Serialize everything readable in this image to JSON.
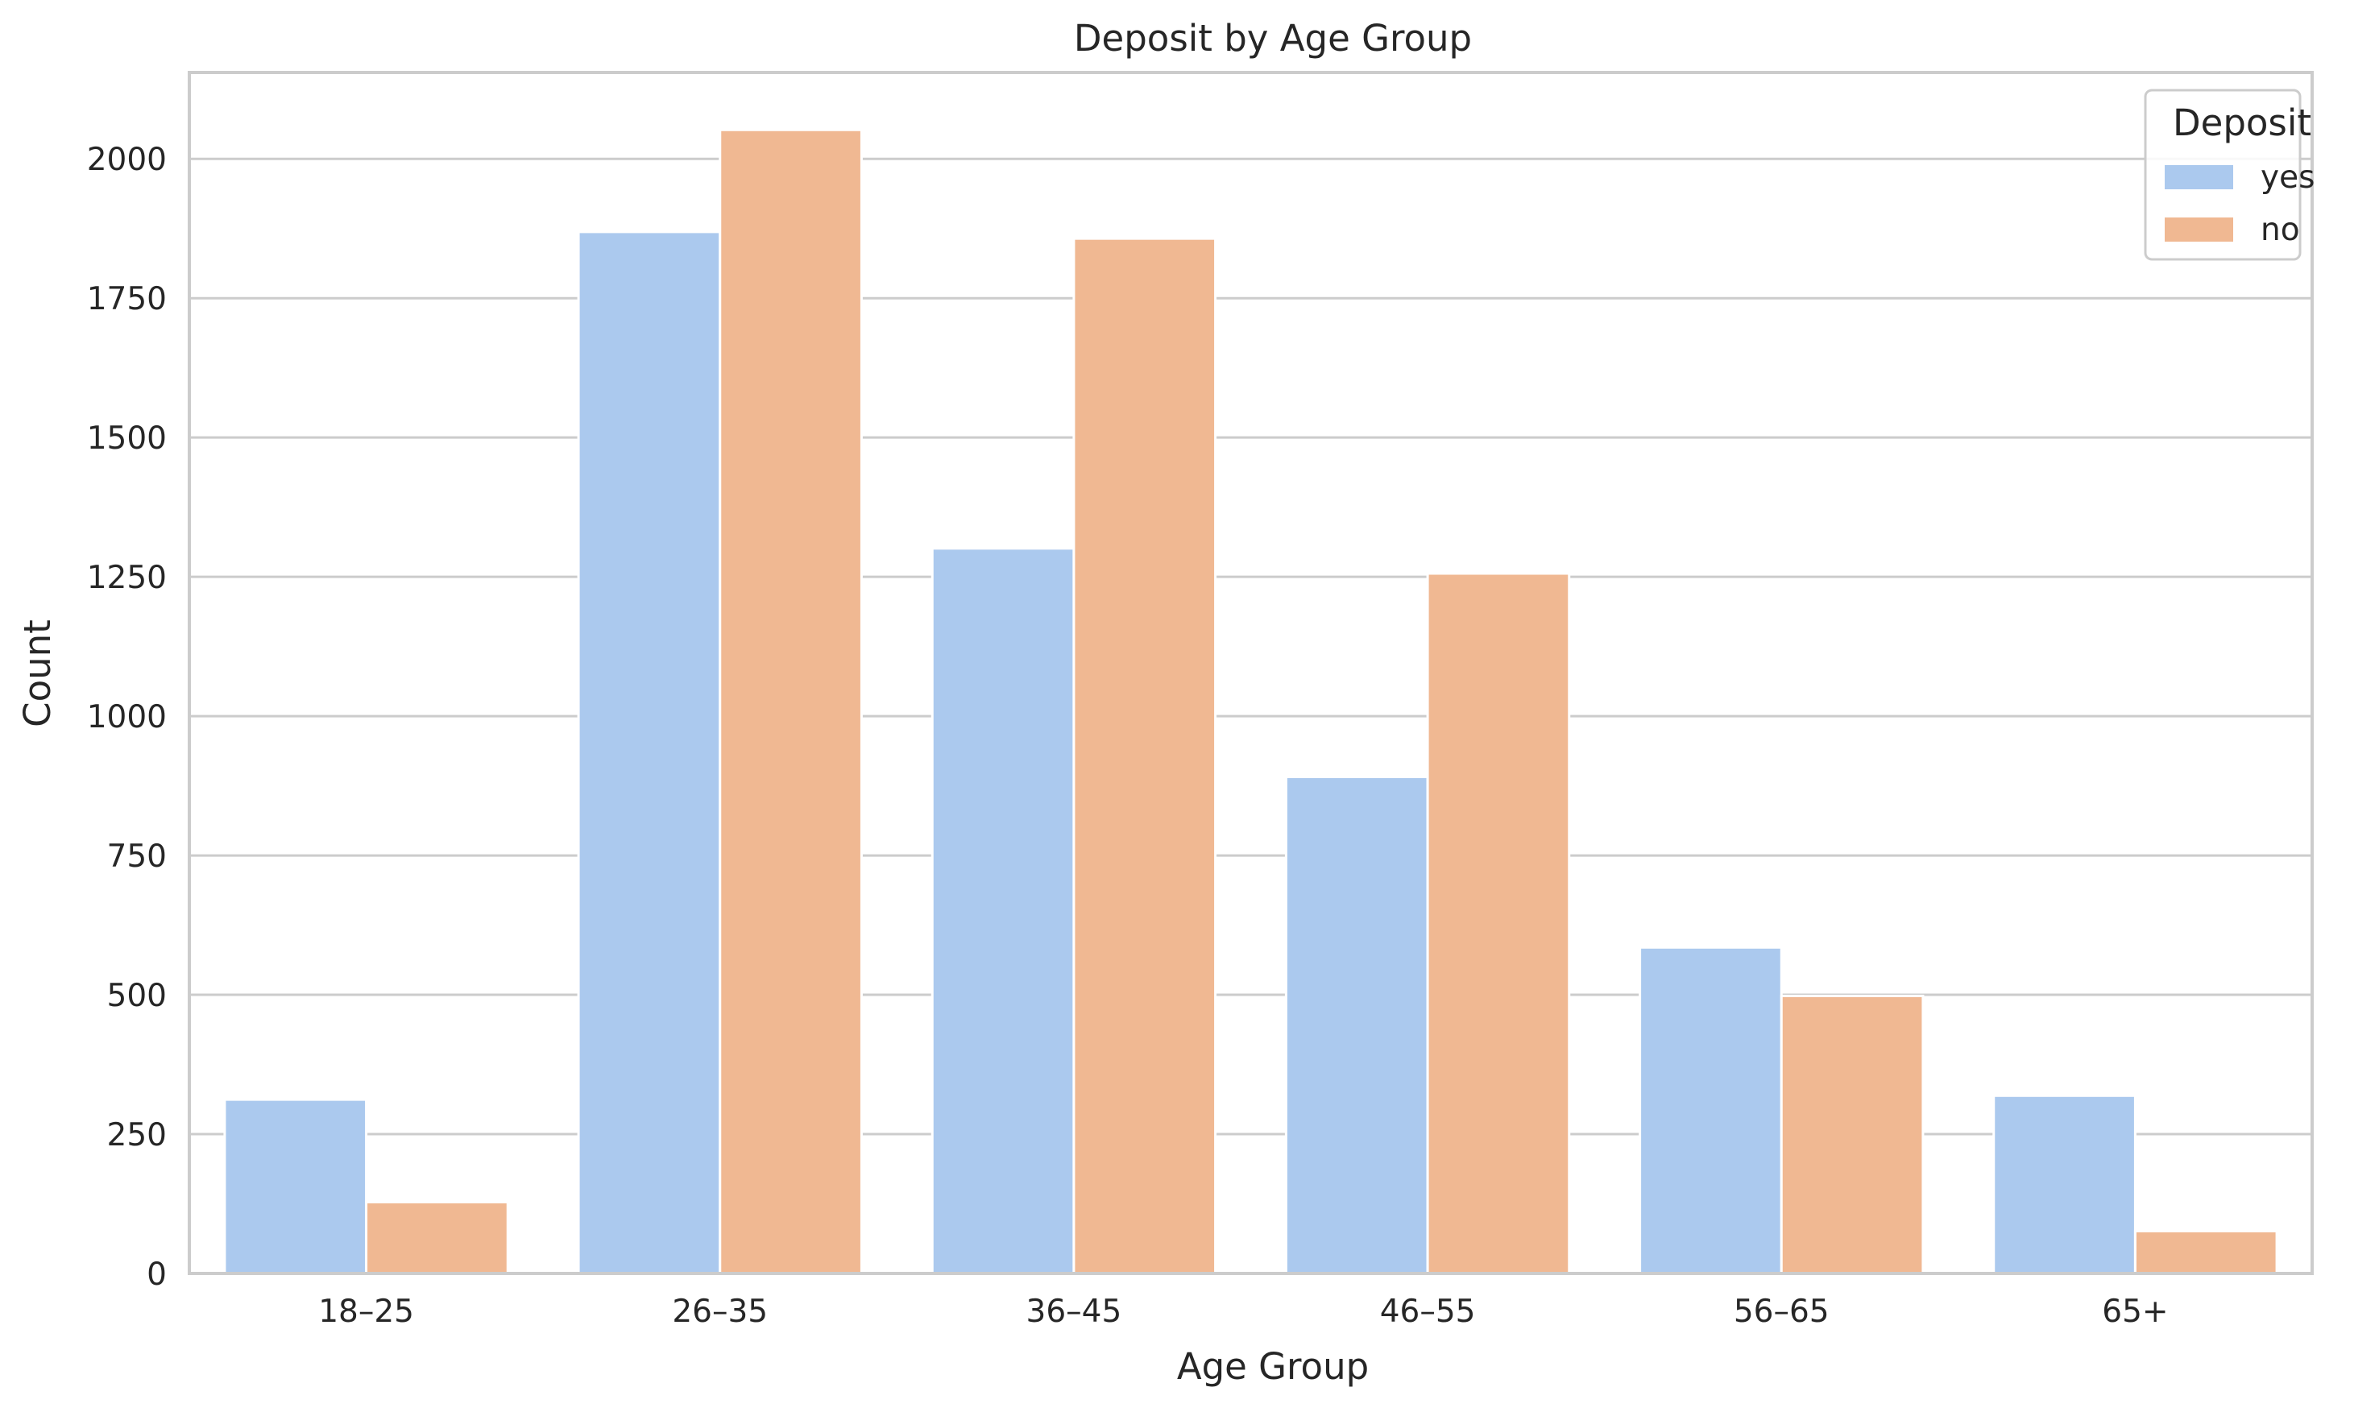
{
  "chart_data": {
    "type": "bar",
    "title": "Deposit by Age Group",
    "xlabel": "Age Group",
    "ylabel": "Count",
    "categories": [
      "18–25",
      "26–35",
      "36–45",
      "46–55",
      "56–65",
      "65+"
    ],
    "series": [
      {
        "name": "yes",
        "color": "#abc9ee",
        "values": [
          312,
          1869,
          1301,
          891,
          585,
          319
        ]
      },
      {
        "name": "no",
        "color": "#f0b892",
        "values": [
          128,
          2052,
          1857,
          1256,
          498,
          76
        ]
      }
    ],
    "ylim": [
      0,
      2155
    ],
    "yticks": [
      0,
      250,
      500,
      750,
      1000,
      1250,
      1500,
      1750,
      2000
    ],
    "grid": true,
    "legend": {
      "title": "Deposit",
      "placement": "top-right"
    }
  }
}
